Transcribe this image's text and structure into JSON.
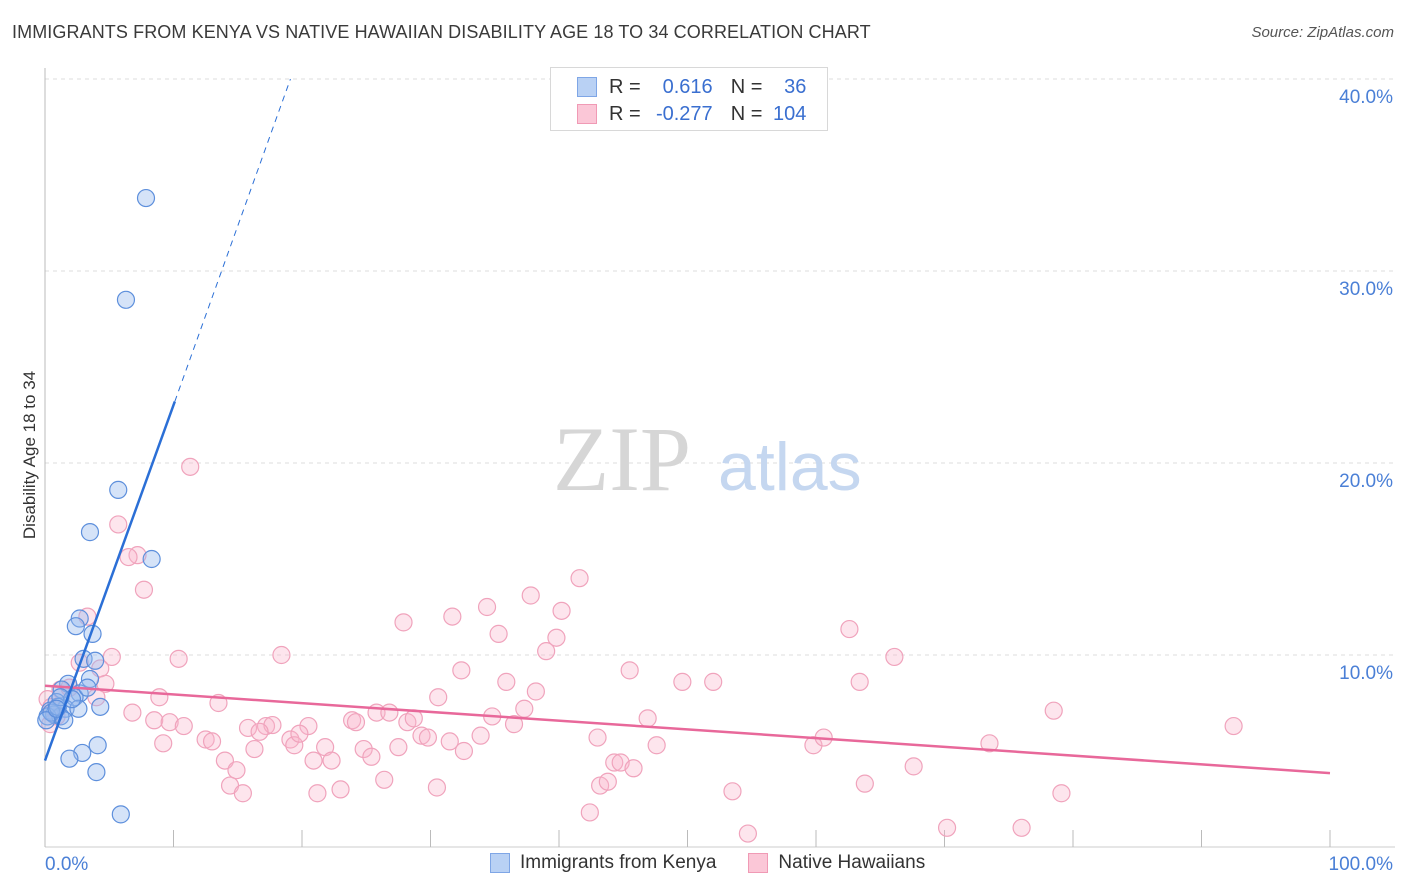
{
  "title": "IMMIGRANTS FROM KENYA VS NATIVE HAWAIIAN DISABILITY AGE 18 TO 34 CORRELATION CHART",
  "source": "Source: ZipAtlas.com",
  "watermark": {
    "zip": "ZIP",
    "atlas": "atlas"
  },
  "legend": {
    "r_label": "R =",
    "n_label": "N =",
    "rows": [
      {
        "r": "0.616",
        "n": "36"
      },
      {
        "r": "-0.277",
        "n": "104"
      }
    ]
  },
  "chart_data": {
    "type": "scatter",
    "title": "IMMIGRANTS FROM KENYA VS NATIVE HAWAIIAN DISABILITY AGE 18 TO 34 CORRELATION CHART",
    "xlabel": "",
    "ylabel": "Disability Age 18 to 34",
    "xlim": [
      0,
      100
    ],
    "ylim": [
      0,
      40
    ],
    "x_tick_labels": [
      "0.0%",
      "100.0%"
    ],
    "y_tick_labels": [
      "10.0%",
      "20.0%",
      "30.0%",
      "40.0%"
    ],
    "y_ticks": [
      10,
      20,
      30,
      40
    ],
    "grid": true,
    "legend_position": "top-center",
    "colors": {
      "kenya": "#6a9be6",
      "hawaiian": "#f09ab5",
      "kenya_line": "#2b6fd6",
      "hawaiian_line": "#e8689a"
    },
    "series": [
      {
        "name": "Immigrants from Kenya",
        "trend": {
          "x0": 0,
          "y0": 4.5,
          "x1": 10.1,
          "y1": 23.2,
          "dash_x1": 19.1,
          "dash_y1": 40
        },
        "points": [
          [
            7.86,
            33.8
          ],
          [
            6.3,
            28.5
          ],
          [
            5.7,
            18.6
          ],
          [
            3.5,
            16.4
          ],
          [
            8.3,
            15.0
          ],
          [
            2.7,
            11.9
          ],
          [
            2.4,
            11.5
          ],
          [
            3.7,
            11.1
          ],
          [
            3.0,
            9.8
          ],
          [
            3.9,
            9.7
          ],
          [
            3.5,
            8.75
          ],
          [
            1.8,
            8.5
          ],
          [
            1.3,
            8.2
          ],
          [
            2.7,
            8.0
          ],
          [
            2.3,
            7.8
          ],
          [
            4.3,
            7.3
          ],
          [
            0.9,
            7.55
          ],
          [
            1.6,
            7.2
          ],
          [
            2.6,
            7.2
          ],
          [
            0.4,
            7.1
          ],
          [
            0.7,
            6.9
          ],
          [
            1.2,
            6.8
          ],
          [
            0.2,
            6.8
          ],
          [
            0.5,
            7.0
          ],
          [
            1.5,
            6.6
          ],
          [
            4.1,
            5.3
          ],
          [
            2.9,
            4.9
          ],
          [
            1.9,
            4.6
          ],
          [
            4.0,
            3.9
          ],
          [
            5.9,
            1.7
          ],
          [
            1.0,
            7.3
          ],
          [
            0.1,
            6.6
          ],
          [
            2.1,
            7.7
          ],
          [
            3.3,
            8.3
          ],
          [
            1.2,
            7.8
          ],
          [
            0.9,
            7.2
          ]
        ]
      },
      {
        "name": "Native Hawaiians",
        "trend": {
          "x0": 0,
          "y0": 8.4,
          "x1": 100,
          "y1": 3.85
        },
        "points": [
          [
            11.3,
            19.8
          ],
          [
            5.7,
            16.8
          ],
          [
            7.2,
            15.2
          ],
          [
            6.5,
            15.1
          ],
          [
            7.7,
            13.4
          ],
          [
            3.3,
            12.0
          ],
          [
            5.2,
            9.9
          ],
          [
            10.4,
            9.8
          ],
          [
            2.7,
            9.6
          ],
          [
            4.3,
            9.3
          ],
          [
            4.7,
            8.5
          ],
          [
            4.0,
            7.8
          ],
          [
            8.9,
            7.8
          ],
          [
            13.5,
            7.5
          ],
          [
            6.8,
            7.0
          ],
          [
            8.5,
            6.6
          ],
          [
            9.7,
            6.5
          ],
          [
            10.8,
            6.3
          ],
          [
            9.2,
            5.4
          ],
          [
            12.5,
            5.6
          ],
          [
            13.0,
            5.5
          ],
          [
            14.0,
            4.5
          ],
          [
            14.9,
            4.0
          ],
          [
            14.4,
            3.2
          ],
          [
            15.4,
            2.8
          ],
          [
            16.3,
            5.1
          ],
          [
            15.8,
            6.2
          ],
          [
            17.2,
            6.3
          ],
          [
            17.7,
            6.35
          ],
          [
            16.7,
            6.0
          ],
          [
            19.1,
            5.6
          ],
          [
            19.4,
            5.3
          ],
          [
            18.4,
            10.0
          ],
          [
            20.5,
            6.3
          ],
          [
            19.8,
            5.9
          ],
          [
            21.8,
            5.2
          ],
          [
            20.9,
            4.5
          ],
          [
            22.3,
            4.5
          ],
          [
            21.2,
            2.8
          ],
          [
            23.0,
            3.0
          ],
          [
            23.9,
            6.6
          ],
          [
            24.2,
            6.5
          ],
          [
            24.8,
            5.1
          ],
          [
            25.4,
            4.7
          ],
          [
            25.8,
            7.0
          ],
          [
            26.8,
            7.0
          ],
          [
            26.4,
            3.5
          ],
          [
            27.5,
            5.2
          ],
          [
            27.9,
            11.7
          ],
          [
            28.2,
            6.5
          ],
          [
            28.7,
            6.7
          ],
          [
            29.3,
            5.8
          ],
          [
            29.8,
            5.7
          ],
          [
            30.5,
            3.1
          ],
          [
            30.6,
            7.8
          ],
          [
            31.5,
            5.5
          ],
          [
            31.7,
            12.0
          ],
          [
            32.4,
            9.2
          ],
          [
            32.6,
            5.0
          ],
          [
            33.9,
            5.8
          ],
          [
            34.4,
            12.5
          ],
          [
            34.8,
            6.8
          ],
          [
            35.3,
            11.1
          ],
          [
            35.9,
            8.6
          ],
          [
            36.5,
            6.4
          ],
          [
            37.3,
            7.2
          ],
          [
            37.8,
            13.1
          ],
          [
            38.2,
            8.1
          ],
          [
            39.0,
            10.2
          ],
          [
            39.8,
            10.9
          ],
          [
            40.2,
            12.3
          ],
          [
            41.6,
            14.0
          ],
          [
            42.4,
            1.8
          ],
          [
            43.0,
            5.7
          ],
          [
            43.2,
            3.2
          ],
          [
            43.8,
            3.4
          ],
          [
            44.3,
            4.4
          ],
          [
            44.8,
            4.4
          ],
          [
            45.5,
            9.2
          ],
          [
            45.8,
            4.1
          ],
          [
            46.9,
            6.7
          ],
          [
            47.6,
            5.3
          ],
          [
            49.6,
            8.6
          ],
          [
            52.0,
            8.6
          ],
          [
            53.5,
            2.9
          ],
          [
            54.7,
            0.7
          ],
          [
            59.8,
            5.3
          ],
          [
            60.6,
            5.7
          ],
          [
            62.6,
            11.35
          ],
          [
            63.4,
            8.6
          ],
          [
            63.8,
            3.3
          ],
          [
            66.1,
            9.9
          ],
          [
            67.6,
            4.2
          ],
          [
            70.2,
            1.0
          ],
          [
            73.5,
            5.4
          ],
          [
            76.0,
            1.0
          ],
          [
            78.5,
            7.1
          ],
          [
            79.1,
            2.8
          ],
          [
            92.5,
            6.3
          ],
          [
            0.2,
            7.7
          ],
          [
            0.5,
            7.3
          ],
          [
            0.9,
            6.8
          ],
          [
            1.2,
            8.2
          ],
          [
            1.9,
            8.3
          ],
          [
            0.4,
            6.4
          ]
        ]
      }
    ]
  }
}
